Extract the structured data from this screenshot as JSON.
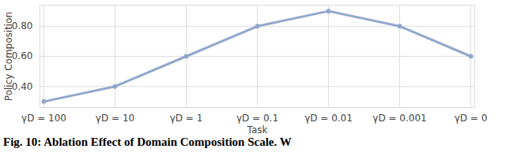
{
  "chart_data": {
    "type": "line",
    "x_label": "Task",
    "y_label": "Policy Composition",
    "caption": "Fig. 10: Ablation Effect of Domain Composition Scale. W",
    "categories": [
      "γD = 100",
      "γD = 10",
      "γD = 1",
      "γD = 0.1",
      "γD = 0.01",
      "γD = 0.001",
      "γD = 0"
    ],
    "values": [
      0.3,
      0.4,
      0.6,
      0.8,
      0.9,
      0.8,
      0.6
    ],
    "color": "#91a8cb",
    "marker": "circle",
    "ylim": [
      0.26,
      0.94
    ],
    "yticks": [
      0.4,
      0.6,
      0.8
    ],
    "grid": true
  }
}
